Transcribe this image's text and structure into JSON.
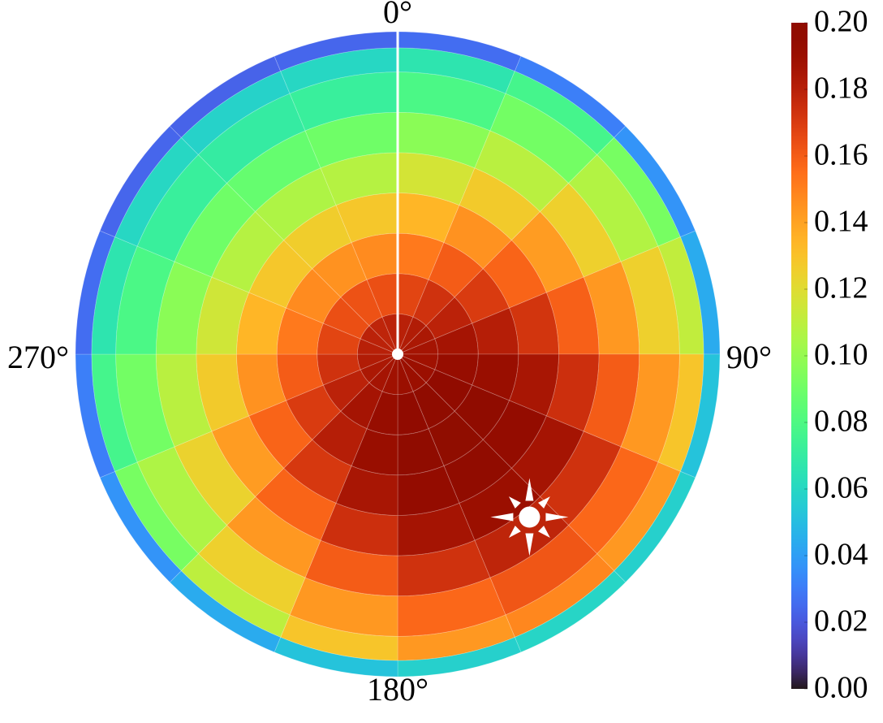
{
  "chart_data": {
    "type": "polar_heatmap",
    "colormap": "turbo",
    "zlim": [
      0,
      0.2
    ],
    "zticks": [
      {
        "value": 0,
        "label": "0.00"
      },
      {
        "value": 0.02,
        "label": "0.02"
      },
      {
        "value": 0.04,
        "label": "0.04"
      },
      {
        "value": 0.06,
        "label": "0.06"
      },
      {
        "value": 0.08,
        "label": "0.08"
      },
      {
        "value": 0.1,
        "label": "0.10"
      },
      {
        "value": 0.12,
        "label": "0.12"
      },
      {
        "value": 0.14,
        "label": "0.14"
      },
      {
        "value": 0.16,
        "label": "0.16"
      },
      {
        "value": 0.18,
        "label": "0.18"
      },
      {
        "value": 0.2,
        "label": "0.20"
      }
    ],
    "thetaticks": [
      {
        "value": 0,
        "label": "0°"
      },
      {
        "value": 90,
        "label": "90°"
      },
      {
        "value": 180,
        "label": "180°"
      },
      {
        "value": 270,
        "label": "270°"
      }
    ],
    "rlim": [
      0,
      1
    ],
    "theta_edges": [
      0,
      22.5,
      45,
      67.5,
      90,
      112.5,
      135,
      157.5,
      180,
      202.5,
      225,
      247.5,
      270,
      292.5,
      315,
      337.5,
      360
    ],
    "r_edges": [
      0,
      0.125,
      0.25,
      0.375,
      0.5,
      0.625,
      0.75,
      0.875,
      0.95,
      1
    ],
    "values": [
      [
        0.18,
        0.182,
        0.184,
        0.186,
        0.188,
        0.19,
        0.19,
        0.19,
        0.188,
        0.186,
        0.184,
        0.182,
        0.18,
        0.179,
        0.178,
        0.179
      ],
      [
        0.167,
        0.173,
        0.179,
        0.186,
        0.192,
        0.196,
        0.198,
        0.196,
        0.192,
        0.186,
        0.179,
        0.173,
        0.167,
        0.164,
        0.163,
        0.164
      ],
      [
        0.152,
        0.16,
        0.17,
        0.181,
        0.191,
        0.198,
        0.2,
        0.198,
        0.191,
        0.181,
        0.17,
        0.16,
        0.152,
        0.147,
        0.145,
        0.147
      ],
      [
        0.134,
        0.145,
        0.158,
        0.172,
        0.185,
        0.194,
        0.197,
        0.194,
        0.185,
        0.171,
        0.158,
        0.145,
        0.134,
        0.128,
        0.126,
        0.128
      ],
      [
        0.116,
        0.127,
        0.142,
        0.159,
        0.174,
        0.186,
        0.19,
        0.186,
        0.174,
        0.158,
        0.142,
        0.127,
        0.115,
        0.108,
        0.106,
        0.108
      ],
      [
        0.097,
        0.109,
        0.125,
        0.143,
        0.16,
        0.173,
        0.178,
        0.173,
        0.16,
        0.143,
        0.124,
        0.109,
        0.097,
        0.09,
        0.087,
        0.09
      ],
      [
        0.079,
        0.091,
        0.107,
        0.125,
        0.143,
        0.157,
        0.162,
        0.157,
        0.143,
        0.125,
        0.106,
        0.091,
        0.079,
        0.072,
        0.07,
        0.072
      ],
      [
        0.066,
        0.077,
        0.092,
        0.111,
        0.129,
        0.143,
        0.148,
        0.143,
        0.129,
        0.11,
        0.092,
        0.077,
        0.066,
        0.06,
        0.058,
        0.06
      ],
      [
        0.026,
        0.031,
        0.037,
        0.044,
        0.052,
        0.057,
        0.059,
        0.057,
        0.052,
        0.044,
        0.037,
        0.031,
        0.026,
        0.024,
        0.023,
        0.024
      ]
    ],
    "sun": {
      "azimuth": 141,
      "r": 0.65
    }
  }
}
